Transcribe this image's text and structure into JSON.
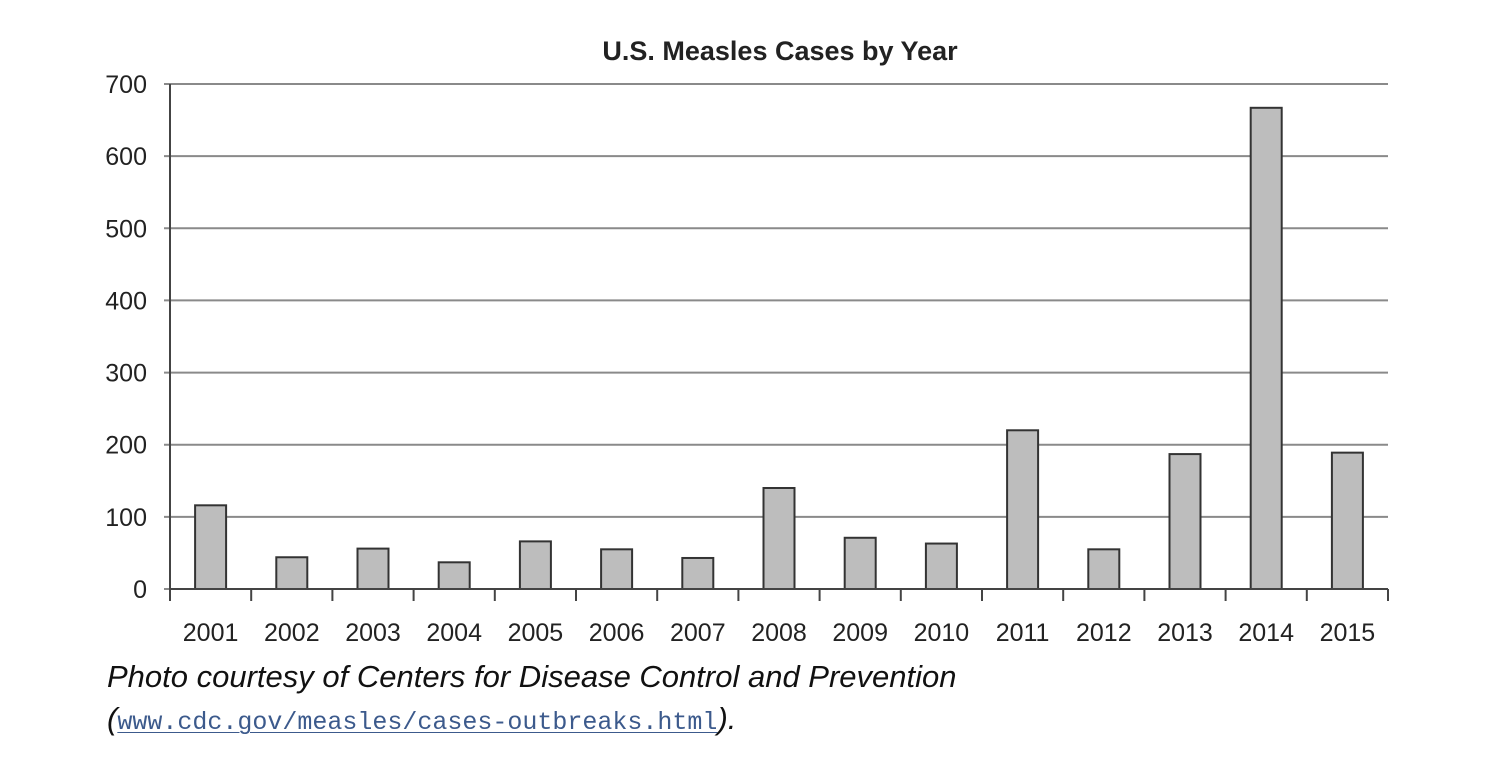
{
  "chart_data": {
    "type": "bar",
    "title": "U.S. Measles Cases by Year",
    "xlabel": "",
    "ylabel": "",
    "categories": [
      "2001",
      "2002",
      "2003",
      "2004",
      "2005",
      "2006",
      "2007",
      "2008",
      "2009",
      "2010",
      "2011",
      "2012",
      "2013",
      "2014",
      "2015"
    ],
    "values": [
      116,
      44,
      56,
      37,
      66,
      55,
      43,
      140,
      71,
      63,
      220,
      55,
      187,
      667,
      189
    ],
    "ylim": [
      0,
      700
    ],
    "yticks": [
      0,
      100,
      200,
      300,
      400,
      500,
      600,
      700
    ],
    "grid": true,
    "bar_color": "#bdbdbd",
    "bar_edge_color": "#333333"
  },
  "caption": {
    "text": "Photo courtesy of Centers for Disease Control and Prevention",
    "open_paren": "(",
    "link": "www.cdc.gov/measles/cases-outbreaks.html",
    "close": ")."
  }
}
